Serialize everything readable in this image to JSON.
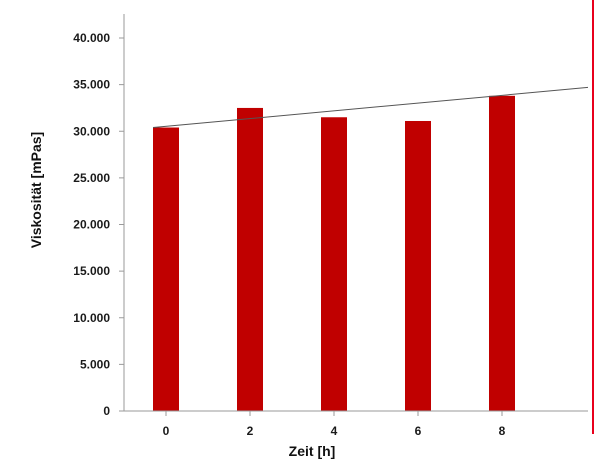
{
  "chart_data": {
    "type": "bar",
    "title": "",
    "xlabel": "Zeit [h]",
    "ylabel": "Viskosität [mPas]",
    "categories": [
      "0",
      "2",
      "4",
      "6",
      "8"
    ],
    "values": [
      30400,
      32500,
      31500,
      31100,
      33800
    ],
    "ylim": [
      0,
      40000
    ],
    "yticks": [
      0,
      5000,
      10000,
      15000,
      20000,
      25000,
      30000,
      35000,
      40000
    ],
    "ytick_labels": [
      "0",
      "5.000",
      "10.000",
      "15.000",
      "20.000",
      "25.000",
      "30.000",
      "35.000",
      "40.000"
    ],
    "grid": false,
    "legend": "none",
    "trendline": {
      "type": "linear",
      "from": {
        "x": "0",
        "y": 30400
      },
      "to_y_at_right_edge": 34700
    },
    "colors": {
      "bar": "#c00000",
      "trendline": "#555555",
      "axis": "#9a9a9a",
      "accent_rule": "#e8001c"
    }
  }
}
